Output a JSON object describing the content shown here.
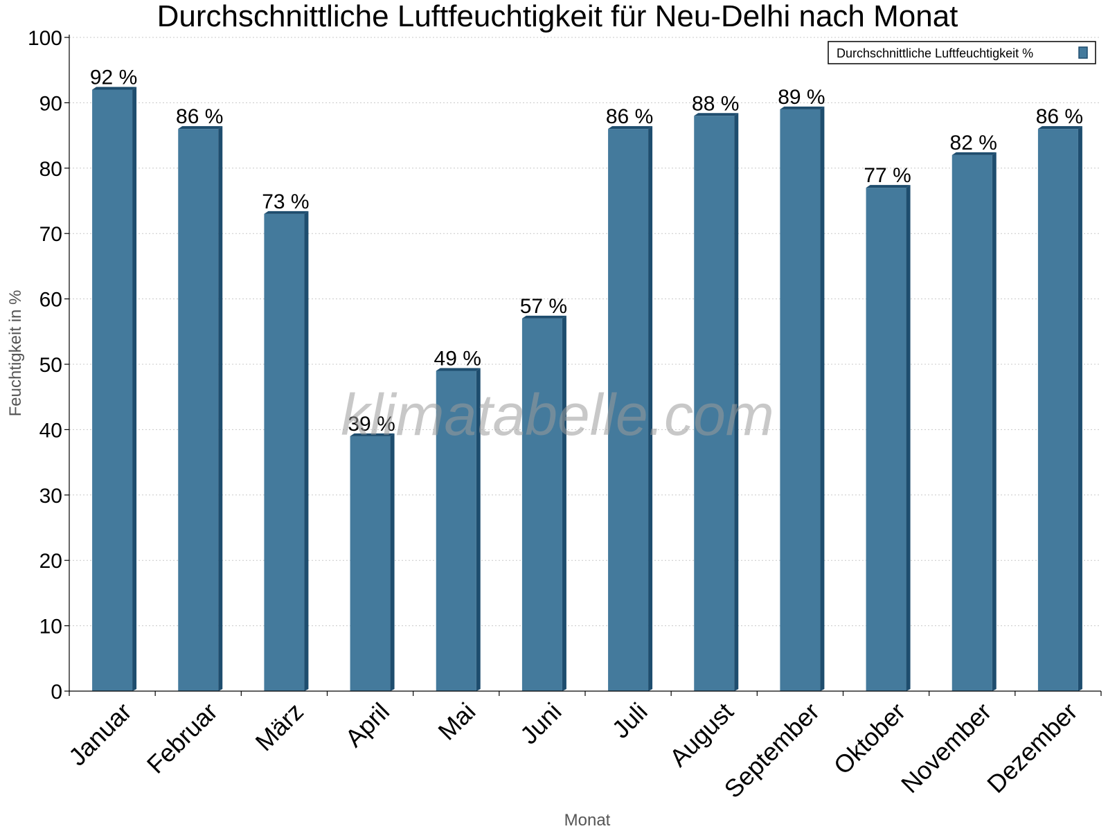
{
  "chart_data": {
    "type": "bar",
    "title": "Durchschnittliche Luftfeuchtigkeit für Neu-Delhi nach Monat",
    "xlabel": "Monat",
    "ylabel": "Feuchtigkeit in %",
    "ylim": [
      0,
      100
    ],
    "yticks": [
      0,
      10,
      20,
      30,
      40,
      50,
      60,
      70,
      80,
      90,
      100
    ],
    "grid": true,
    "legend_position": "top-right",
    "categories": [
      "Januar",
      "Februar",
      "März",
      "April",
      "Mai",
      "Juni",
      "Juli",
      "August",
      "September",
      "Oktober",
      "November",
      "Dezember"
    ],
    "series": [
      {
        "name": "Durchschnittliche Luftfeuchtigkeit %",
        "values": [
          92,
          86,
          73,
          39,
          49,
          57,
          86,
          88,
          89,
          77,
          82,
          86
        ],
        "labels": [
          "92 %",
          "86 %",
          "73 %",
          "39 %",
          "49 %",
          "57 %",
          "86 %",
          "88 %",
          "89 %",
          "77 %",
          "82 %",
          "86 %"
        ],
        "color": "#447a9c",
        "side_color": "#1e4d6e"
      }
    ],
    "watermark": "klimatabelle.com"
  }
}
